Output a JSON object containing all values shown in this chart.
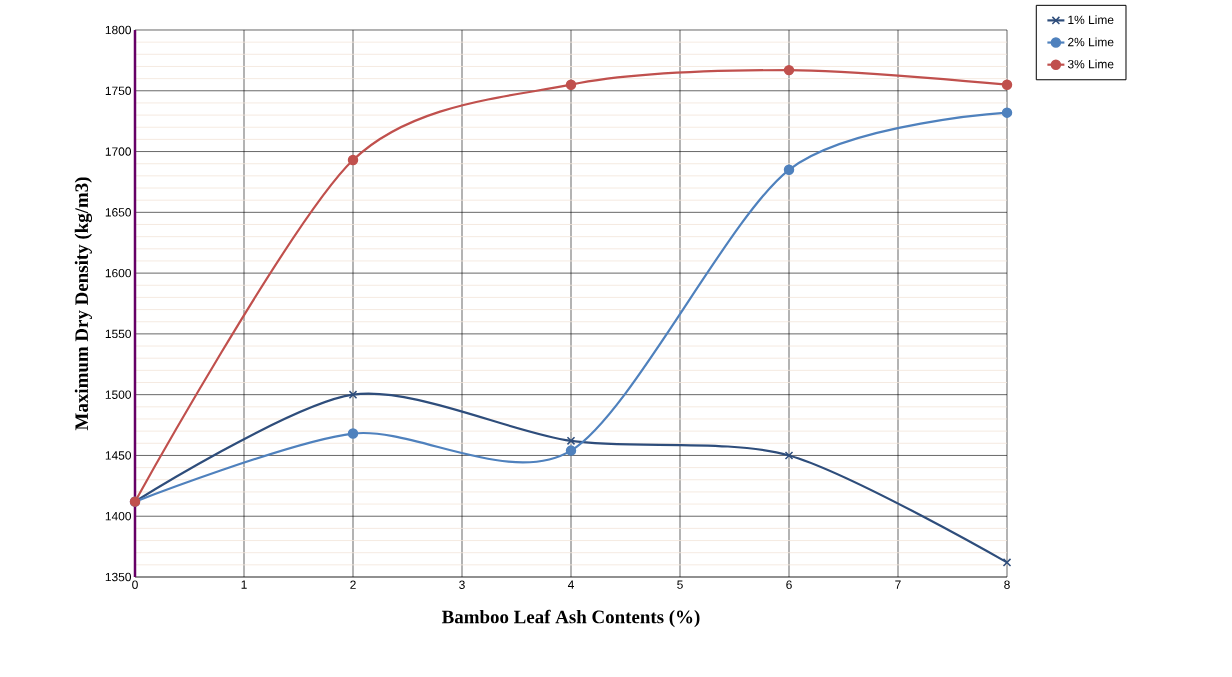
{
  "chart_data": {
    "type": "line",
    "xlabel": "Bamboo Leaf Ash Contents (%)",
    "ylabel": "Maximum Dry Density (kg/m3)",
    "x": [
      0,
      2,
      4,
      6,
      8
    ],
    "series": [
      {
        "name": "1% Lime",
        "color": "#2e4d7b",
        "marker": "cross",
        "values": [
          1412,
          1500,
          1462,
          1450,
          1362
        ]
      },
      {
        "name": "2% Lime",
        "color": "#4f81bd",
        "marker": "circle",
        "values": [
          1412,
          1468,
          1454,
          1685,
          1732
        ]
      },
      {
        "name": "3% Lime",
        "color": "#c0504d",
        "marker": "circle",
        "values": [
          1412,
          1693,
          1755,
          1767,
          1755
        ]
      }
    ],
    "xlim": [
      0,
      8
    ],
    "xticks": [
      0,
      1,
      2,
      3,
      4,
      5,
      6,
      7,
      8
    ],
    "ylim": [
      1350,
      1800
    ],
    "yticks": [
      1350,
      1400,
      1450,
      1500,
      1550,
      1600,
      1650,
      1700,
      1750,
      1800
    ],
    "grid": true,
    "legend": "top right",
    "line_style": "solid"
  }
}
